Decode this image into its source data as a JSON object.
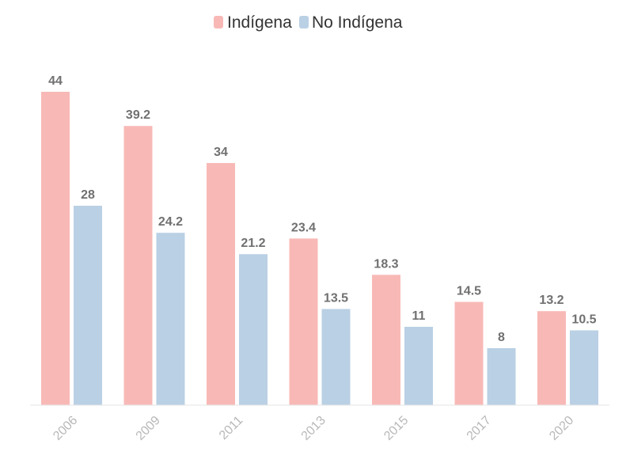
{
  "chart_data": {
    "type": "bar",
    "categories": [
      "2006",
      "2009",
      "2011",
      "2013",
      "2015",
      "2017",
      "2020"
    ],
    "series": [
      {
        "name": "Indígena",
        "color": "#f8b9b6",
        "values": [
          44,
          39.2,
          34,
          23.4,
          18.3,
          14.5,
          13.2
        ]
      },
      {
        "name": "No Indígena",
        "color": "#bad0e4",
        "values": [
          28,
          24.2,
          21.2,
          13.5,
          11,
          8,
          10.5
        ]
      }
    ],
    "value_labels": [
      [
        "44",
        "39.2",
        "34",
        "23.4",
        "18.3",
        "14.5",
        "13.2"
      ],
      [
        "28",
        "24.2",
        "21.2",
        "13.5",
        "11",
        "8",
        "10.5"
      ]
    ],
    "title": "",
    "xlabel": "",
    "ylabel": "",
    "ylim": [
      0,
      44
    ],
    "grid": false,
    "legend": "top-center",
    "x_tick_rotation": -45,
    "axis_color": "#e6e6e6"
  }
}
